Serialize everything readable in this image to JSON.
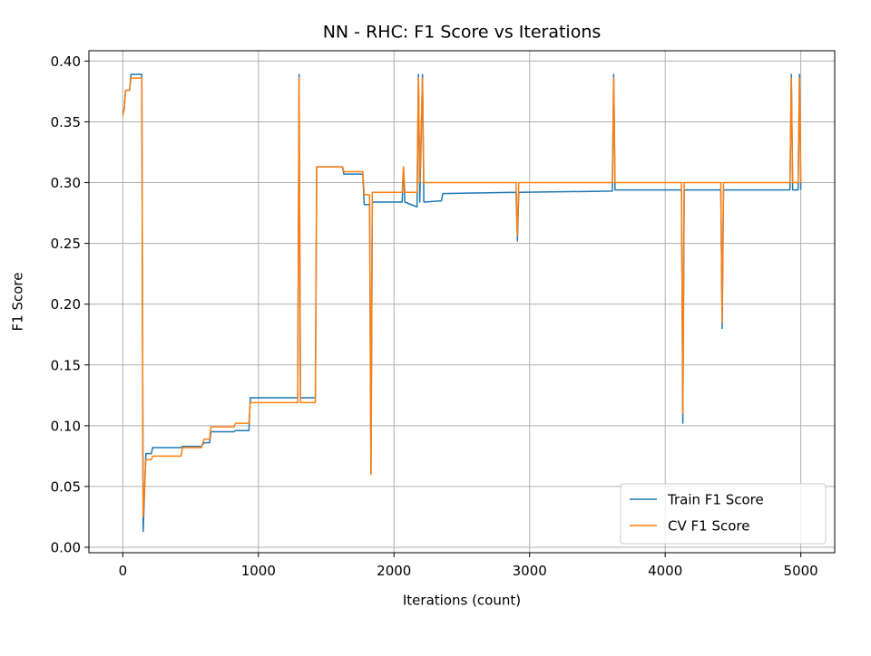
{
  "chart_data": {
    "type": "line",
    "title": "NN - RHC: F1 Score vs Iterations",
    "x_label": "Iterations (count)",
    "y_label": "F1 Score",
    "x": [
      0,
      10,
      20,
      50,
      60,
      140,
      150,
      170,
      210,
      220,
      430,
      440,
      580,
      600,
      640,
      650,
      820,
      830,
      930,
      940,
      1290,
      1300,
      1310,
      1420,
      1430,
      1620,
      1630,
      1770,
      1780,
      1820,
      1830,
      1840,
      2060,
      2070,
      2080,
      2170,
      2180,
      2190,
      2210,
      2220,
      2350,
      2360,
      2900,
      2910,
      2920,
      3610,
      3620,
      3630,
      4120,
      4130,
      4140,
      4410,
      4420,
      4430,
      4920,
      4930,
      4940,
      4980,
      4990,
      5000
    ],
    "series": [
      {
        "name": "Train F1 Score",
        "color": "#1f77b4",
        "values": [
          0.358,
          0.36,
          0.376,
          0.376,
          0.389,
          0.389,
          0.013,
          0.077,
          0.077,
          0.082,
          0.082,
          0.083,
          0.083,
          0.086,
          0.086,
          0.095,
          0.095,
          0.096,
          0.096,
          0.123,
          0.123,
          0.389,
          0.123,
          0.123,
          0.313,
          0.313,
          0.307,
          0.307,
          0.282,
          0.282,
          0.06,
          0.284,
          0.284,
          0.313,
          0.284,
          0.28,
          0.389,
          0.284,
          0.389,
          0.284,
          0.285,
          0.291,
          0.292,
          0.252,
          0.292,
          0.293,
          0.389,
          0.294,
          0.294,
          0.102,
          0.294,
          0.294,
          0.18,
          0.294,
          0.294,
          0.389,
          0.294,
          0.294,
          0.389,
          0.294
        ]
      },
      {
        "name": "CV F1 Score",
        "color": "#ff7f0e",
        "values": [
          0.355,
          0.36,
          0.376,
          0.376,
          0.386,
          0.386,
          0.025,
          0.072,
          0.072,
          0.075,
          0.075,
          0.082,
          0.082,
          0.089,
          0.089,
          0.099,
          0.099,
          0.102,
          0.102,
          0.119,
          0.119,
          0.386,
          0.119,
          0.119,
          0.313,
          0.313,
          0.309,
          0.309,
          0.29,
          0.29,
          0.06,
          0.292,
          0.292,
          0.313,
          0.292,
          0.292,
          0.386,
          0.3,
          0.386,
          0.3,
          0.3,
          0.3,
          0.3,
          0.256,
          0.3,
          0.3,
          0.386,
          0.3,
          0.3,
          0.11,
          0.3,
          0.3,
          0.185,
          0.3,
          0.3,
          0.386,
          0.3,
          0.3,
          0.386,
          0.3
        ]
      }
    ],
    "xlim": [
      -250,
      5250
    ],
    "ylim": [
      -0.0045,
      0.4085
    ],
    "xticks": [
      0,
      1000,
      2000,
      3000,
      4000,
      5000
    ],
    "yticks": [
      {
        "value": 0,
        "label": "0.00"
      },
      0.05,
      {
        "value": 0.1,
        "label": "0.10"
      },
      0.15,
      {
        "value": 0.2,
        "label": "0.20"
      },
      0.25,
      {
        "value": 0.3,
        "label": "0.30"
      },
      0.35,
      {
        "value": 0.4,
        "label": "0.40"
      }
    ],
    "grid": true,
    "legend": "lower right"
  }
}
